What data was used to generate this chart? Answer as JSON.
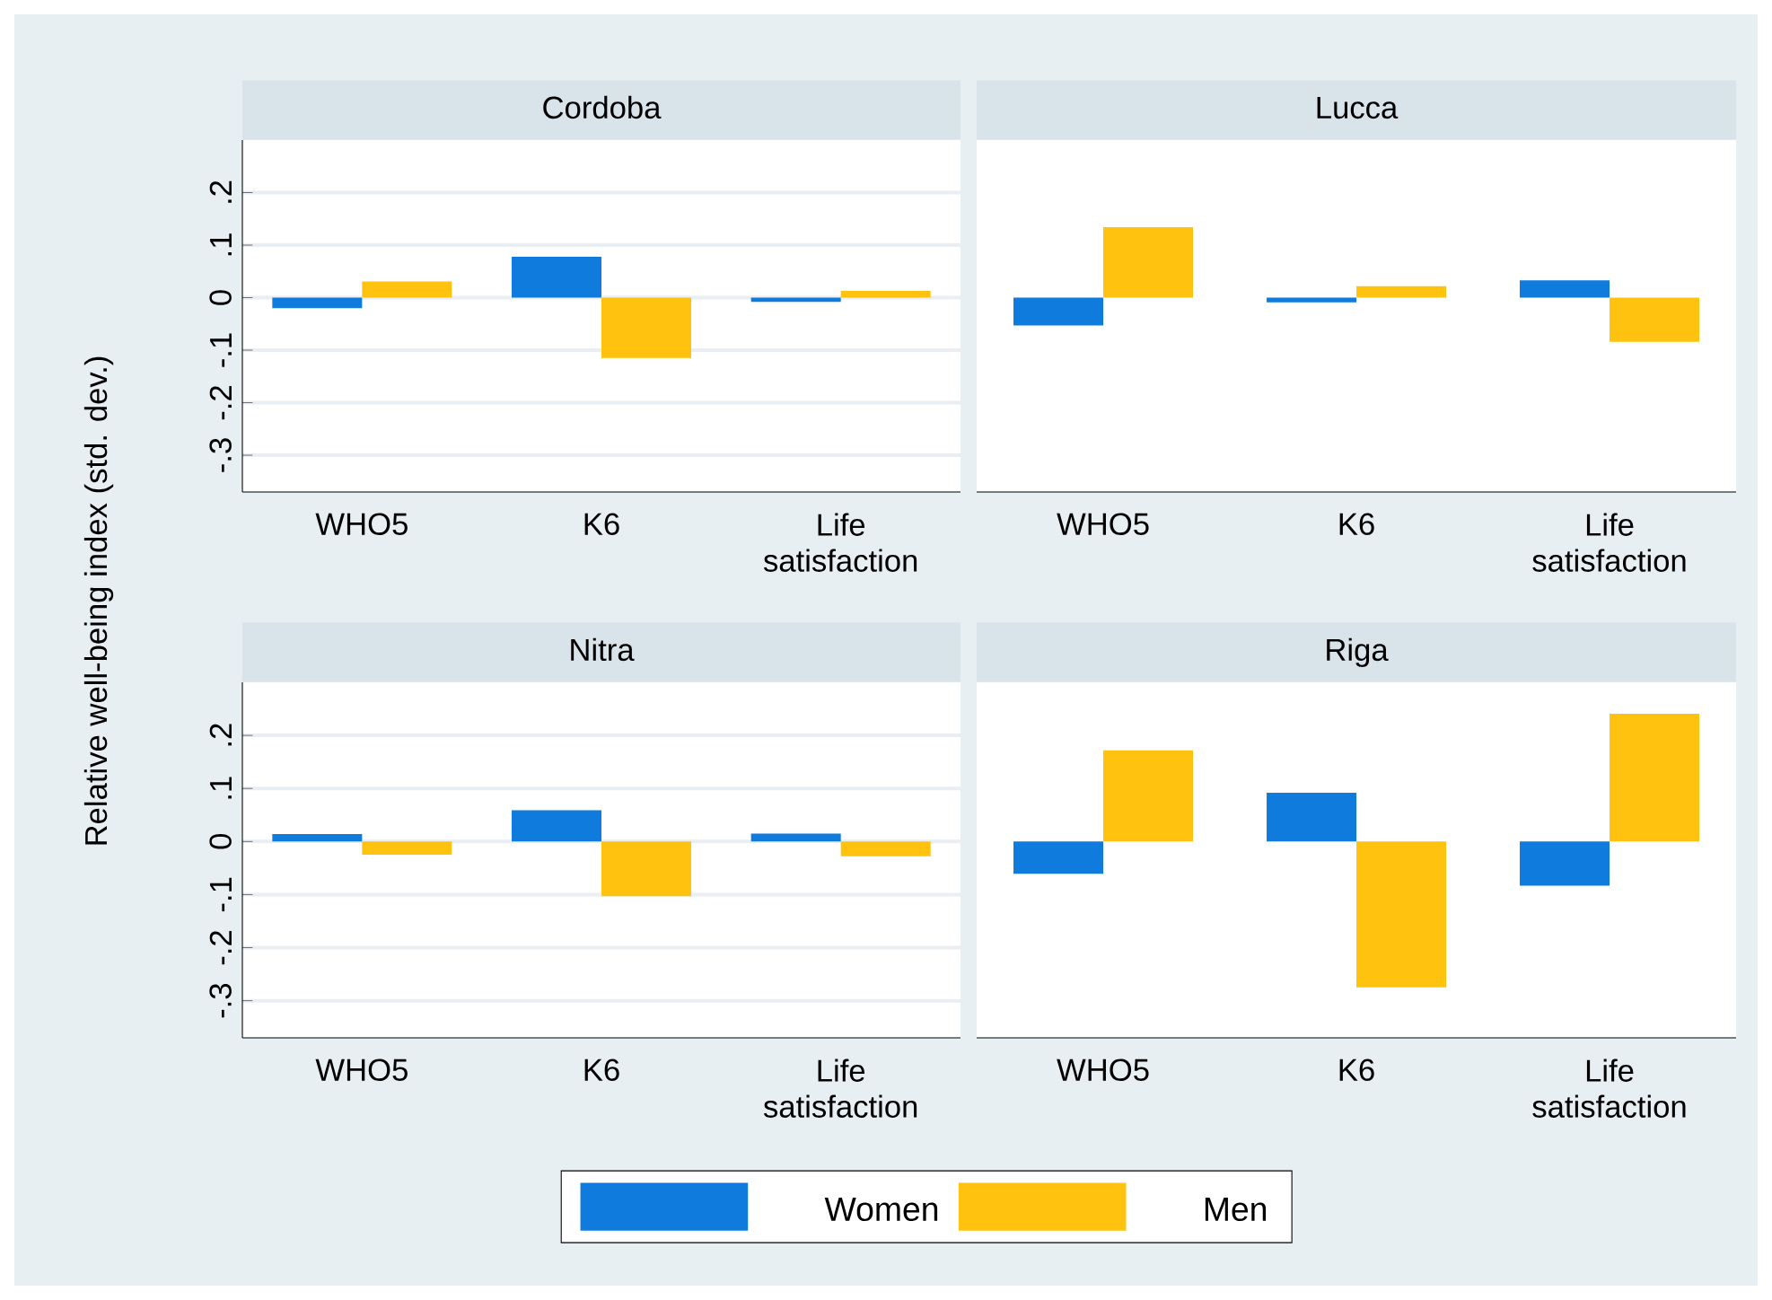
{
  "chart_data": [
    {
      "type": "bar",
      "title": "Cordoba",
      "ylabel": "Relative well-being index (std. dev.)",
      "categories": [
        "WHO5",
        "K6",
        "Life satisfaction"
      ],
      "ylim": [
        -0.37,
        0.3
      ],
      "yticks": [
        {
          "value": -0.3,
          "label": "-.3"
        },
        {
          "value": -0.2,
          "label": "-.2"
        },
        {
          "value": -0.1,
          "label": "-.1"
        },
        0,
        {
          "value": 0.1,
          "label": ".1"
        },
        {
          "value": 0.2,
          "label": ".2"
        }
      ],
      "grid": "y",
      "series": [
        {
          "color": "#0f7bdc",
          "values": [
            -0.02,
            0.078,
            -0.008
          ]
        },
        {
          "color": "#ffc30f",
          "values": [
            0.031,
            -0.115,
            0.013
          ]
        }
      ]
    },
    {
      "type": "bar",
      "title": "Lucca",
      "categories": [
        "WHO5",
        "K6",
        "Life satisfaction"
      ],
      "ylim": [
        -0.37,
        0.3
      ],
      "yticks": [
        -0.3,
        -0.2,
        -0.1,
        0,
        0.1,
        0.2
      ],
      "grid": "y",
      "tick_labels": "x",
      "series": [
        {
          "color": "#0f7bdc",
          "values": [
            -0.053,
            -0.009,
            0.033
          ]
        },
        {
          "color": "#ffc30f",
          "values": [
            0.134,
            0.022,
            -0.084
          ]
        }
      ]
    },
    {
      "type": "bar",
      "title": "Nitra",
      "categories": [
        "WHO5",
        "K6",
        "Life satisfaction"
      ],
      "ylim": [
        -0.37,
        0.3
      ],
      "yticks": [
        {
          "value": -0.3,
          "label": "-.3"
        },
        {
          "value": -0.2,
          "label": "-.2"
        },
        {
          "value": -0.1,
          "label": "-.1"
        },
        0,
        {
          "value": 0.1,
          "label": ".1"
        },
        {
          "value": 0.2,
          "label": ".2"
        }
      ],
      "grid": "y",
      "series": [
        {
          "color": "#0f7bdc",
          "values": [
            0.014,
            0.059,
            0.015
          ]
        },
        {
          "color": "#ffc30f",
          "values": [
            -0.025,
            -0.103,
            -0.028
          ]
        }
      ]
    },
    {
      "type": "bar",
      "title": "Riga",
      "categories": [
        "WHO5",
        "K6",
        "Life satisfaction"
      ],
      "ylim": [
        -0.37,
        0.3
      ],
      "yticks": [
        -0.3,
        -0.2,
        -0.1,
        0,
        0.1,
        0.2
      ],
      "grid": "y",
      "tick_labels": "x",
      "legend": "bottom",
      "series": [
        {
          "name": "Women",
          "color": "#0f7bdc",
          "values": [
            -0.061,
            0.092,
            -0.083
          ]
        },
        {
          "name": "Men",
          "color": "#ffc30f",
          "values": [
            0.172,
            -0.275,
            0.241
          ]
        }
      ]
    }
  ]
}
